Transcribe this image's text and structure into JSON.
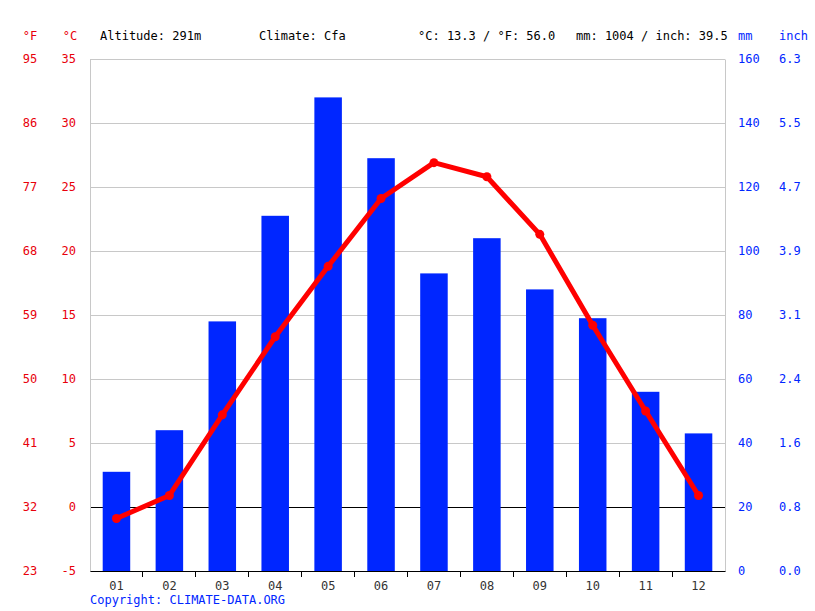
{
  "chart_data": {
    "type": "bar",
    "annotations": [
      "Altitude: 291m",
      "Climate: Cfa",
      "°C: 13.3 / °F: 56.0",
      "mm: 1004 / inch: 39.5"
    ],
    "y_label": "°C",
    "yf_label": "°F",
    "y2_label": "mm",
    "y2_inch_label": "inch",
    "source": "Copyright: CLIMATE-DATA.ORG",
    "categories": [
      "01",
      "02",
      "03",
      "04",
      "05",
      "06",
      "07",
      "08",
      "09",
      "10",
      "11",
      "12"
    ],
    "series": [
      {
        "type": "bar",
        "axis": "y2",
        "color": "#0026ff",
        "values": [
          31,
          44,
          78,
          111,
          148,
          129,
          93,
          104,
          88,
          79,
          56,
          43
        ]
      },
      {
        "type": "line",
        "color": "#ff0000",
        "marker": "circle",
        "values": [
          -0.9,
          0.9,
          7.2,
          13.3,
          18.8,
          24.1,
          26.9,
          25.8,
          21.3,
          14.2,
          7.5,
          0.9
        ]
      }
    ],
    "ylim": [
      -5,
      35
    ],
    "yticks": [
      -5,
      0,
      5,
      10,
      15,
      20,
      25,
      30,
      35
    ],
    "yticks_f": [
      {
        "value": -5,
        "label": "23"
      },
      {
        "value": 0,
        "label": "32"
      },
      {
        "value": 5,
        "label": "41"
      },
      {
        "value": 10,
        "label": "50"
      },
      {
        "value": 15,
        "label": "59"
      },
      {
        "value": 20,
        "label": "68"
      },
      {
        "value": 25,
        "label": "77"
      },
      {
        "value": 30,
        "label": "86"
      },
      {
        "value": 35,
        "label": "95"
      }
    ],
    "y2lim": [
      0,
      160
    ],
    "y2ticks": [
      0,
      20,
      40,
      60,
      80,
      100,
      120,
      140,
      160
    ],
    "y2ticks_inch": [
      {
        "value": 0,
        "label": "0.0"
      },
      {
        "value": 20,
        "label": "0.8"
      },
      {
        "value": 40,
        "label": "1.6"
      },
      {
        "value": 60,
        "label": "2.4"
      },
      {
        "value": 80,
        "label": "3.1"
      },
      {
        "value": 100,
        "label": "3.9"
      },
      {
        "value": 120,
        "label": "4.7"
      },
      {
        "value": 140,
        "label": "5.5"
      },
      {
        "value": 160,
        "label": "6.3"
      }
    ],
    "grid": true
  }
}
